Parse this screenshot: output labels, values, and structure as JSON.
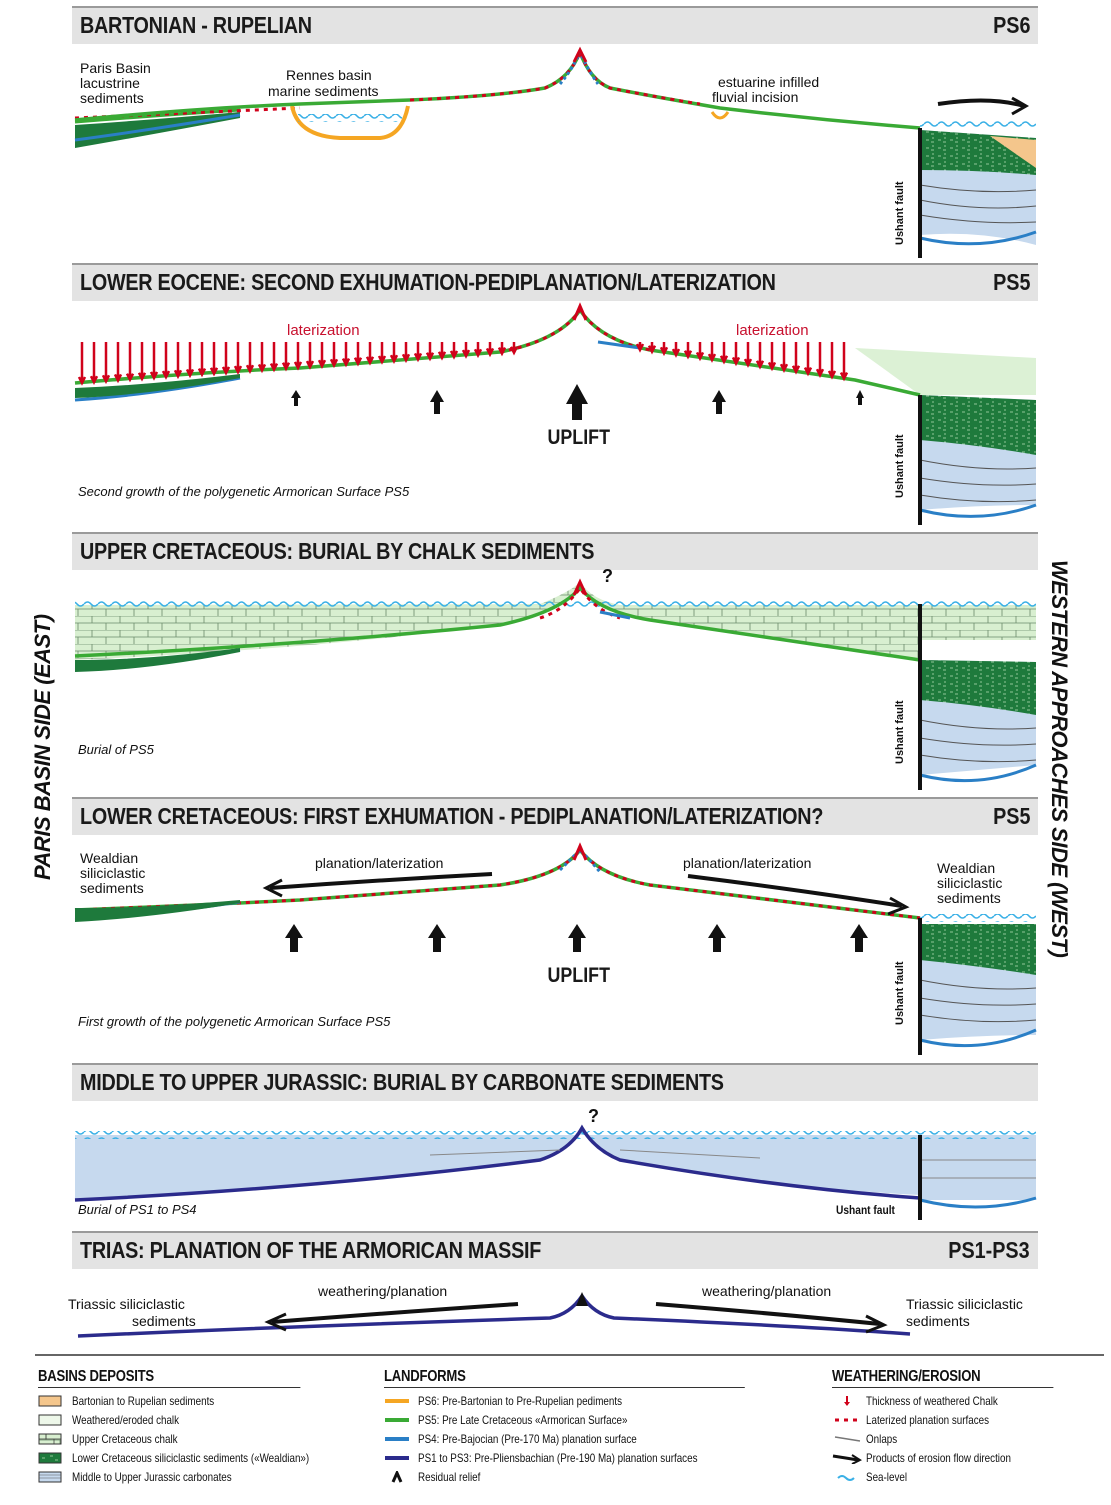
{
  "panels": [
    {
      "title": "BARTONIAN - RUPELIAN",
      "code": "PS6"
    },
    {
      "title": "LOWER EOCENE: SECOND EXHUMATION-PEDIPLANATION/LATERIZATION",
      "code": "PS5"
    },
    {
      "title": "UPPER CRETACEOUS: BURIAL BY CHALK SEDIMENTS",
      "code": ""
    },
    {
      "title": "LOWER CRETACEOUS: FIRST EXHUMATION - PEDIPLANATION/LATERIZATION?",
      "code": "PS5"
    },
    {
      "title": "MIDDLE TO UPPER JURASSIC: BURIAL BY CARBONATE SEDIMENTS",
      "code": ""
    },
    {
      "title": "TRIAS: PLANATION OF THE ARMORICAN MASSIF",
      "code": "PS1-PS3"
    }
  ],
  "labels": {
    "paris_basin_lacustrine": [
      "Paris Basin",
      "lacustrine",
      "sediments"
    ],
    "rennes_basin": [
      "Rennes basin",
      "marine sediments"
    ],
    "estuarine": [
      "estuarine infilled",
      "fluvial incision"
    ],
    "laterization": "laterization",
    "uplift": "UPLIFT",
    "second_growth": "Second growth of the polygenetic Armorican Surface PS5",
    "burial_ps5": "Burial of PS5",
    "wealdian": [
      "Wealdian",
      "siliciclastic",
      "sediments"
    ],
    "planation_laterization": "planation/laterization",
    "first_growth": "First growth of the polygenetic Armorican Surface PS5",
    "burial_ps1_ps4": "Burial of PS1 to PS4",
    "weathering_planation": "weathering/planation",
    "triassic": [
      "Triassic siliciclastic",
      "sediments"
    ],
    "ushant_fault": "Ushant fault",
    "question": "?"
  },
  "side_labels": {
    "east": "PARIS BASIN SIDE (EAST)",
    "west": "WESTERN APPROACHES SIDE (WEST)"
  },
  "legend": {
    "basins": {
      "title": "BASINS DEPOSITS",
      "items": [
        "Bartonian to Rupelian sediments",
        "Weathered/eroded chalk",
        "Upper Cretaceous chalk",
        "Lower Cretaceous siliciclastic sediments («Wealdian»)",
        "Middle to Upper Jurassic carbonates"
      ]
    },
    "landforms": {
      "title": "LANDFORMS",
      "items": [
        "PS6: Pre-Bartonian to Pre-Rupelian pediments",
        "PS5: Pre Late Cretaceous «Armorican Surface»",
        "PS4: Pre-Bajocian (Pre-170 Ma) planation surface",
        "PS1 to PS3: Pre-Pliensbachian (Pre-190 Ma) planation surfaces",
        "Residual relief"
      ]
    },
    "weathering": {
      "title": "WEATHERING/EROSION",
      "items": [
        "Thickness of weathered Chalk",
        "Laterized planation surfaces",
        "Onlaps",
        "Products of erosion flow direction",
        "Sea-level"
      ]
    }
  },
  "colors": {
    "ps6": "#f5a623",
    "ps5": "#3aaa35",
    "ps4": "#2a7fc6",
    "ps1_3": "#2b2b8c",
    "laterite": "#d0021b",
    "wealdian": "#1e7a3c",
    "chalk": "#d8efd0",
    "jurassic": "#c6d9ee",
    "sea": "#3ab0e6"
  }
}
